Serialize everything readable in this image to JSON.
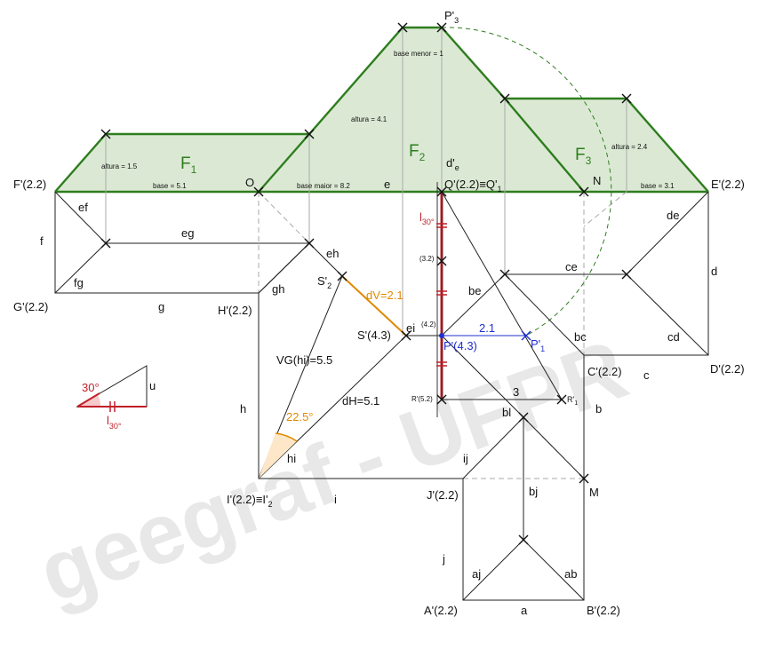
{
  "watermark": "geegraf - UFPR",
  "faces": {
    "f1": "F",
    "f1_sub": "1",
    "f2": "F",
    "f2_sub": "2",
    "f3": "F",
    "f3_sub": "3"
  },
  "points": {
    "f_prime": "F'(2.2)",
    "e_prime": "E'(2.2)",
    "g_prime": "G'(2.2)",
    "h_prime": "H'(2.2)",
    "c_prime": "C'(2.2)",
    "d_prime": "D'(2.2)",
    "i_prime": "I'(2.2)≡I'",
    "i_prime_sub": "2",
    "j_prime": "J'(2.2)",
    "a_prime": "A'(2.2)",
    "b_prime": "B'(2.2)",
    "q_prime": "Q'(2.2)≡Q'",
    "q_prime_sub": "1",
    "p3": "P'",
    "p3_sub": "3",
    "s2": "S'",
    "s2_sub": "2",
    "s_prime": "S'(4.3)",
    "p_prime": "P'(4.3)",
    "p1": "P'",
    "p1_sub": "1",
    "r1": "R'",
    "r1_sub": "1",
    "r_prime": "R'(5.2)",
    "o": "O",
    "n": "N",
    "m": "M",
    "de": "d'",
    "de_sub": "e"
  },
  "edges": {
    "ef": "ef",
    "f": "f",
    "fg": "fg",
    "g": "g",
    "eg": "eg",
    "eh": "eh",
    "gh": "gh",
    "h": "h",
    "hi": "hi",
    "i": "i",
    "ij": "ij",
    "j": "j",
    "aj": "aj",
    "a": "a",
    "ab": "ab",
    "b": "b",
    "bj": "bj",
    "bl": "bl",
    "c": "c",
    "d": "d",
    "cd": "cd",
    "bc": "bc",
    "ce": "ce",
    "de": "de",
    "be": "be",
    "e": "e",
    "ei": "ei",
    "u": "u"
  },
  "annotations": {
    "altura_f1": "altura = 1.5",
    "base_f1": "base = 5.1",
    "altura_f2": "altura = 4.1",
    "base_menor": "base menor = 1",
    "base_maior": "base maior = 8.2",
    "altura_f3": "altura = 2.4",
    "base_f3": "base = 3.1",
    "dv": "dV=2.1",
    "vg": "VG(hi)=5.5",
    "dh": "dH=5.1",
    "angle_hi": "22.5°",
    "angle_u": "30°",
    "dist_blue": "2.1",
    "dist_three": "3",
    "l30": "l",
    "l30_sub": "30°",
    "l30_red": "l",
    "l30_red_sub": "30°",
    "tick_32": "(3.2)",
    "tick_42": "(4.2)"
  },
  "colors": {
    "face_fill": "#dbe9d4",
    "face_edge": "#2e7d1e",
    "dv_orange": "#e08a00",
    "blue": "#1f2fd0",
    "red": "#c0202a"
  }
}
